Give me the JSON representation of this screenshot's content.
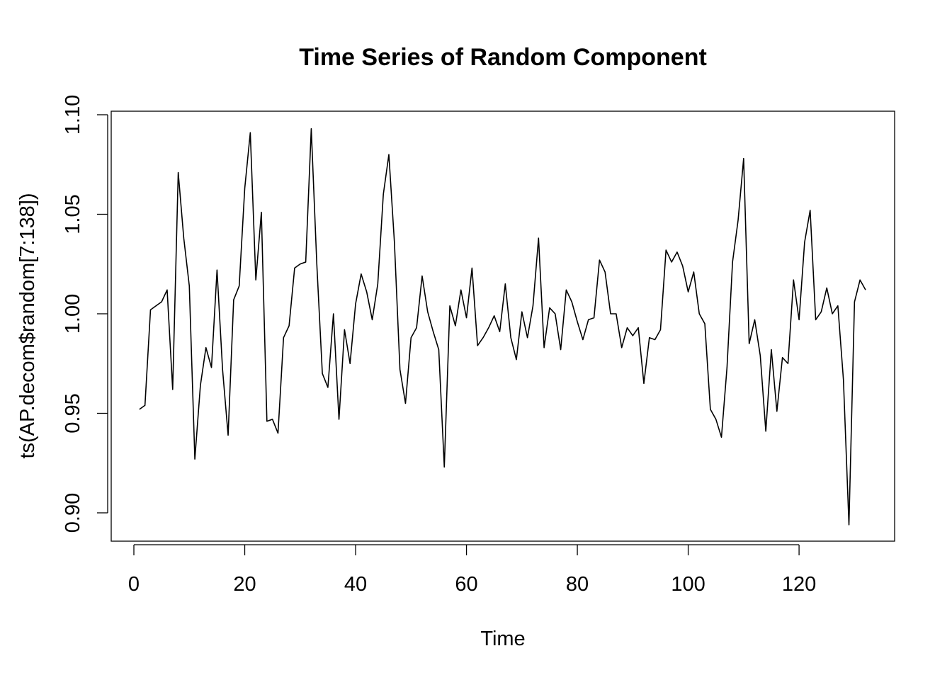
{
  "chart_data": {
    "type": "line",
    "title": "Time Series of Random Component",
    "xlabel": "Time",
    "ylabel": "ts(AP.decom$random[7:138])",
    "xlim": [
      0,
      132
    ],
    "ylim": [
      0.89,
      1.1
    ],
    "x_ticks": [
      0,
      20,
      40,
      60,
      80,
      100,
      120
    ],
    "x_tick_labels": [
      "0",
      "20",
      "40",
      "60",
      "80",
      "100",
      "120"
    ],
    "y_ticks": [
      0.9,
      0.95,
      1.0,
      1.05,
      1.1
    ],
    "y_tick_labels": [
      "0.90",
      "0.95",
      "1.00",
      "1.05",
      "1.10"
    ],
    "grid": false,
    "legend": "none",
    "series": [
      {
        "x": [
          1,
          2,
          3,
          4,
          5,
          6,
          7,
          8,
          9,
          10,
          11,
          12,
          13,
          14,
          15,
          16,
          17,
          18,
          19,
          20,
          21,
          22,
          23,
          24,
          25,
          26,
          27,
          28,
          29,
          30,
          31,
          32,
          33,
          34,
          35,
          36,
          37,
          38,
          39,
          40,
          41,
          42,
          43,
          44,
          45,
          46,
          47,
          48,
          49,
          50,
          51,
          52,
          53,
          54,
          55,
          56,
          57,
          58,
          59,
          60,
          61,
          62,
          63,
          64,
          65,
          66,
          67,
          68,
          69,
          70,
          71,
          72,
          73,
          74,
          75,
          76,
          77,
          78,
          79,
          80,
          81,
          82,
          83,
          84,
          85,
          86,
          87,
          88,
          89,
          90,
          91,
          92,
          93,
          94,
          95,
          96,
          97,
          98,
          99,
          100,
          101,
          102,
          103,
          104,
          105,
          106,
          107,
          108,
          109,
          110,
          111,
          112,
          113,
          114,
          115,
          116,
          117,
          118,
          119,
          120,
          121,
          122,
          123,
          124,
          125,
          126,
          127,
          128,
          129,
          130,
          131,
          132
        ],
        "values": [
          0.952,
          0.954,
          1.002,
          1.004,
          1.006,
          1.012,
          0.962,
          1.071,
          1.038,
          1.014,
          0.927,
          0.964,
          0.983,
          0.973,
          1.022,
          0.972,
          0.939,
          1.007,
          1.014,
          1.063,
          1.091,
          1.017,
          1.051,
          0.946,
          0.947,
          0.94,
          0.988,
          0.994,
          1.023,
          1.025,
          1.026,
          1.093,
          1.025,
          0.97,
          0.963,
          1.0,
          0.947,
          0.992,
          0.975,
          1.005,
          1.02,
          1.011,
          0.997,
          1.015,
          1.06,
          1.08,
          1.036,
          0.972,
          0.955,
          0.988,
          0.993,
          1.019,
          1.001,
          0.991,
          0.982,
          0.923,
          1.004,
          0.994,
          1.012,
          0.998,
          1.023,
          0.984,
          0.988,
          0.993,
          0.999,
          0.991,
          1.015,
          0.988,
          0.977,
          1.001,
          0.988,
          1.004,
          1.038,
          0.983,
          1.003,
          1.0,
          0.982,
          1.012,
          1.006,
          0.996,
          0.987,
          0.997,
          0.998,
          1.027,
          1.021,
          1.0,
          1.0,
          0.983,
          0.993,
          0.989,
          0.993,
          0.965,
          0.988,
          0.987,
          0.992,
          1.032,
          1.026,
          1.031,
          1.024,
          1.011,
          1.021,
          1.0,
          0.995,
          0.952,
          0.947,
          0.938,
          0.973,
          1.026,
          1.047,
          1.078,
          0.985,
          0.997,
          0.979,
          0.941,
          0.982,
          0.951,
          0.978,
          0.975,
          1.017,
          0.997,
          1.036,
          1.052,
          0.997,
          1.001,
          1.013,
          1.0,
          1.004,
          0.967,
          0.894,
          1.006,
          1.017,
          1.012
        ]
      }
    ]
  }
}
